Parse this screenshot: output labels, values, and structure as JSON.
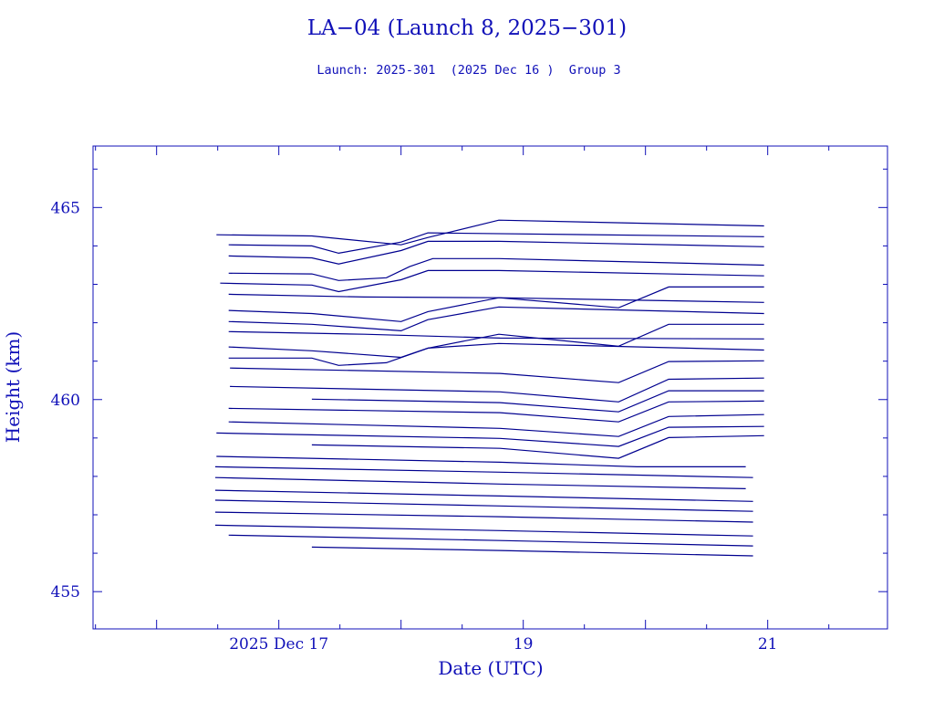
{
  "chart_data": {
    "type": "line",
    "title": "LA−04 (Launch 8, 2025−301)",
    "subtitle": "Launch: 2025-301  (2025 Dec 16 )  Group 3",
    "xlabel": "Date (UTC)",
    "ylabel": "Height (km)",
    "xlim": [
      15.48,
      21.98
    ],
    "ylim": [
      454.03,
      466.6
    ],
    "x_unit": "day of December 2025",
    "x_ticks": [
      {
        "value": 17,
        "label": "2025 Dec 17"
      },
      {
        "value": 19,
        "label": "19"
      },
      {
        "value": 21,
        "label": "21"
      }
    ],
    "x_minor_step": 0.5,
    "y_ticks": [
      {
        "value": 455,
        "label": "455"
      },
      {
        "value": 460,
        "label": "460"
      },
      {
        "value": 465,
        "label": "465"
      }
    ],
    "y_minor_step": 1,
    "grid": false,
    "colors": {
      "line": "#00008f",
      "text": "#1010b8",
      "frame": "#1010b8"
    },
    "series": [
      {
        "points": [
          [
            16.49,
            464.29
          ],
          [
            17.27,
            464.26
          ],
          [
            18.0,
            464.03
          ],
          [
            18.22,
            464.22
          ],
          [
            18.8,
            464.67
          ],
          [
            20.97,
            464.52
          ]
        ]
      },
      {
        "points": [
          [
            16.59,
            464.03
          ],
          [
            17.27,
            464.0
          ],
          [
            17.49,
            463.81
          ],
          [
            18.0,
            464.1
          ],
          [
            18.22,
            464.34
          ],
          [
            20.97,
            464.24
          ]
        ]
      },
      {
        "points": [
          [
            16.59,
            463.74
          ],
          [
            17.27,
            463.69
          ],
          [
            17.49,
            463.53
          ],
          [
            18.0,
            463.88
          ],
          [
            18.22,
            464.12
          ],
          [
            18.8,
            464.12
          ],
          [
            20.97,
            463.98
          ]
        ]
      },
      {
        "points": [
          [
            16.59,
            463.29
          ],
          [
            17.27,
            463.27
          ],
          [
            17.49,
            463.1
          ],
          [
            17.88,
            463.17
          ],
          [
            18.07,
            463.46
          ],
          [
            18.26,
            463.67
          ],
          [
            18.8,
            463.67
          ],
          [
            20.97,
            463.5
          ]
        ]
      },
      {
        "points": [
          [
            16.52,
            463.03
          ],
          [
            17.27,
            462.98
          ],
          [
            17.49,
            462.81
          ],
          [
            18.0,
            463.12
          ],
          [
            18.22,
            463.36
          ],
          [
            18.8,
            463.36
          ],
          [
            20.97,
            463.22
          ]
        ]
      },
      {
        "points": [
          [
            16.59,
            462.74
          ],
          [
            17.7,
            462.67
          ],
          [
            18.81,
            462.65
          ],
          [
            20.97,
            462.53
          ]
        ]
      },
      {
        "points": [
          [
            16.59,
            462.32
          ],
          [
            17.27,
            462.24
          ],
          [
            18.0,
            462.03
          ],
          [
            18.22,
            462.29
          ],
          [
            18.8,
            462.65
          ],
          [
            19.78,
            462.39
          ],
          [
            20.19,
            462.93
          ],
          [
            20.97,
            462.93
          ]
        ]
      },
      {
        "points": [
          [
            16.59,
            462.03
          ],
          [
            17.27,
            461.96
          ],
          [
            18.0,
            461.79
          ],
          [
            18.22,
            462.08
          ],
          [
            18.8,
            462.41
          ],
          [
            20.97,
            462.24
          ]
        ]
      },
      {
        "points": [
          [
            16.59,
            461.77
          ],
          [
            17.7,
            461.7
          ],
          [
            18.81,
            461.6
          ],
          [
            20.97,
            461.58
          ]
        ]
      },
      {
        "points": [
          [
            16.59,
            461.37
          ],
          [
            17.27,
            461.27
          ],
          [
            18.0,
            461.1
          ],
          [
            18.22,
            461.34
          ],
          [
            18.8,
            461.7
          ],
          [
            19.78,
            461.39
          ],
          [
            20.19,
            461.96
          ],
          [
            20.97,
            461.96
          ]
        ]
      },
      {
        "points": [
          [
            16.59,
            461.08
          ],
          [
            17.27,
            461.08
          ],
          [
            17.49,
            460.89
          ],
          [
            17.88,
            460.96
          ],
          [
            18.22,
            461.34
          ],
          [
            18.8,
            461.46
          ],
          [
            20.97,
            461.29
          ]
        ]
      },
      {
        "points": [
          [
            16.6,
            460.82
          ],
          [
            18.81,
            460.68
          ],
          [
            19.78,
            460.44
          ],
          [
            20.19,
            460.99
          ],
          [
            20.97,
            461.01
          ]
        ]
      },
      {
        "points": [
          [
            16.6,
            460.34
          ],
          [
            18.81,
            460.2
          ],
          [
            19.78,
            459.94
          ],
          [
            20.19,
            460.53
          ],
          [
            20.97,
            460.56
          ]
        ]
      },
      {
        "points": [
          [
            17.27,
            460.01
          ],
          [
            18.81,
            459.92
          ],
          [
            19.78,
            459.68
          ],
          [
            20.19,
            460.23
          ],
          [
            20.97,
            460.23
          ]
        ]
      },
      {
        "points": [
          [
            16.59,
            459.77
          ],
          [
            18.81,
            459.66
          ],
          [
            19.78,
            459.42
          ],
          [
            20.19,
            459.94
          ],
          [
            20.97,
            459.96
          ]
        ]
      },
      {
        "points": [
          [
            16.59,
            459.42
          ],
          [
            18.81,
            459.25
          ],
          [
            19.78,
            459.04
          ],
          [
            20.19,
            459.56
          ],
          [
            20.97,
            459.61
          ]
        ]
      },
      {
        "points": [
          [
            16.49,
            459.13
          ],
          [
            18.81,
            458.99
          ],
          [
            19.78,
            458.78
          ],
          [
            20.19,
            459.28
          ],
          [
            20.97,
            459.3
          ]
        ]
      },
      {
        "points": [
          [
            17.27,
            458.82
          ],
          [
            18.81,
            458.73
          ],
          [
            19.78,
            458.47
          ],
          [
            20.19,
            459.01
          ],
          [
            20.97,
            459.06
          ]
        ]
      },
      {
        "points": [
          [
            16.49,
            458.52
          ],
          [
            18.81,
            458.37
          ],
          [
            19.93,
            458.25
          ],
          [
            20.82,
            458.25
          ]
        ]
      },
      {
        "points": [
          [
            16.48,
            458.25
          ],
          [
            18.81,
            458.11
          ],
          [
            20.88,
            457.97
          ]
        ]
      },
      {
        "points": [
          [
            16.48,
            457.97
          ],
          [
            18.81,
            457.8
          ],
          [
            20.82,
            457.68
          ]
        ]
      },
      {
        "points": [
          [
            16.48,
            457.64
          ],
          [
            18.81,
            457.49
          ],
          [
            20.88,
            457.35
          ]
        ]
      },
      {
        "points": [
          [
            16.48,
            457.38
          ],
          [
            18.81,
            457.23
          ],
          [
            20.88,
            457.09
          ]
        ]
      },
      {
        "points": [
          [
            16.48,
            457.07
          ],
          [
            18.81,
            456.95
          ],
          [
            20.88,
            456.81
          ]
        ]
      },
      {
        "points": [
          [
            16.48,
            456.73
          ],
          [
            18.81,
            456.59
          ],
          [
            20.88,
            456.45
          ]
        ]
      },
      {
        "points": [
          [
            16.59,
            456.47
          ],
          [
            18.81,
            456.33
          ],
          [
            20.88,
            456.19
          ]
        ]
      },
      {
        "points": [
          [
            17.27,
            456.16
          ],
          [
            18.81,
            456.07
          ],
          [
            20.88,
            455.93
          ]
        ]
      }
    ]
  }
}
